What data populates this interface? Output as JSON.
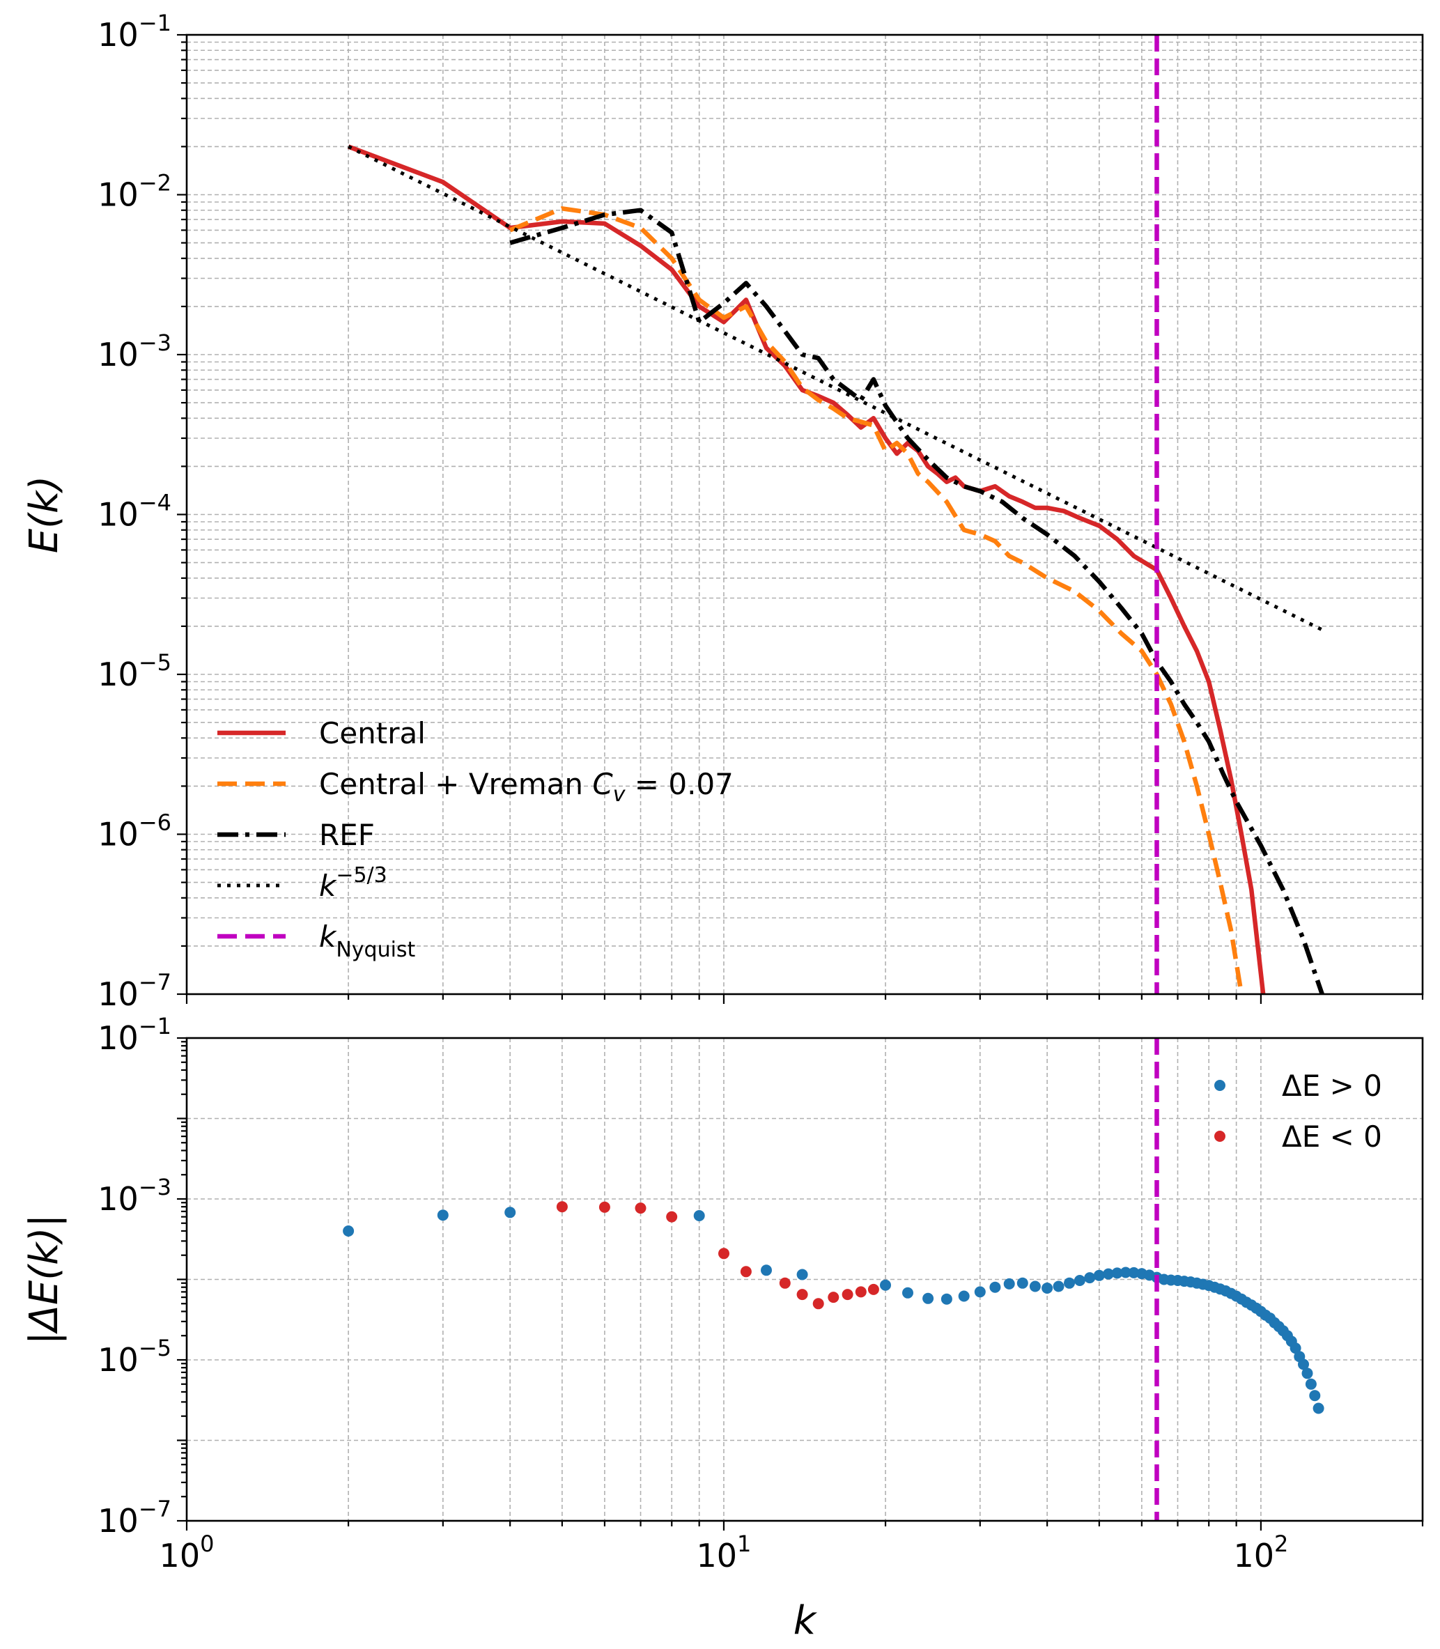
{
  "chart_data": [
    {
      "id": "top",
      "type": "line",
      "xscale": "log",
      "yscale": "log",
      "xlim": [
        1,
        200
      ],
      "ylim": [
        1e-07,
        0.1
      ],
      "xlabel": "",
      "ylabel": "E(k)",
      "ytick_labels": [
        "10",
        "10",
        "10",
        "10",
        "10",
        "10",
        "10"
      ],
      "ytick_exponents": [
        "−7",
        "−6",
        "−5",
        "−4",
        "−3",
        "−2",
        "−1"
      ],
      "grid": true,
      "legend_position": "lower-left",
      "series": [
        {
          "name": "Central",
          "color": "#d62728",
          "style": "solid",
          "points": [
            [
              2,
              0.02
            ],
            [
              3,
              0.012
            ],
            [
              4,
              0.0062
            ],
            [
              5,
              0.0068
            ],
            [
              6,
              0.0066
            ],
            [
              7,
              0.0048
            ],
            [
              8,
              0.0034
            ],
            [
              9,
              0.002
            ],
            [
              10,
              0.0016
            ],
            [
              11,
              0.0022
            ],
            [
              12,
              0.0011
            ],
            [
              13,
              0.00085
            ],
            [
              14,
              0.0006
            ],
            [
              15,
              0.00055
            ],
            [
              16,
              0.0005
            ],
            [
              17,
              0.00042
            ],
            [
              18,
              0.00035
            ],
            [
              19,
              0.0004
            ],
            [
              20,
              0.0003
            ],
            [
              21,
              0.00024
            ],
            [
              22,
              0.00028
            ],
            [
              23,
              0.00025
            ],
            [
              24,
              0.0002
            ],
            [
              25,
              0.00018
            ],
            [
              26,
              0.00016
            ],
            [
              27,
              0.00017
            ],
            [
              28,
              0.00015
            ],
            [
              30,
              0.00014
            ],
            [
              32,
              0.00015
            ],
            [
              34,
              0.00013
            ],
            [
              36,
              0.00012
            ],
            [
              38,
              0.00011
            ],
            [
              40,
              0.00011
            ],
            [
              43,
              0.000105
            ],
            [
              46,
              9.5e-05
            ],
            [
              50,
              8.5e-05
            ],
            [
              54,
              7e-05
            ],
            [
              58,
              5.5e-05
            ],
            [
              62,
              4.8e-05
            ],
            [
              64,
              4.5e-05
            ],
            [
              68,
              3e-05
            ],
            [
              72,
              2e-05
            ],
            [
              76,
              1.4e-05
            ],
            [
              80,
              9e-06
            ],
            [
              84,
              4.5e-06
            ],
            [
              88,
              2.2e-06
            ],
            [
              92,
              1e-06
            ],
            [
              96,
              4.5e-07
            ],
            [
              99,
              1.8e-07
            ],
            [
              101,
              1e-07
            ]
          ]
        },
        {
          "name": "Central + Vreman C_v = 0.07",
          "color": "#ff7f0e",
          "style": "dashed",
          "points": [
            [
              4,
              0.006
            ],
            [
              5,
              0.0082
            ],
            [
              6,
              0.0075
            ],
            [
              7,
              0.0062
            ],
            [
              8,
              0.004
            ],
            [
              9,
              0.0022
            ],
            [
              10,
              0.0017
            ],
            [
              11,
              0.002
            ],
            [
              12,
              0.0012
            ],
            [
              13,
              0.0009
            ],
            [
              14,
              0.00062
            ],
            [
              15,
              0.00052
            ],
            [
              16,
              0.00046
            ],
            [
              17,
              0.0004
            ],
            [
              18,
              0.00038
            ],
            [
              19,
              0.00036
            ],
            [
              20,
              0.00025
            ],
            [
              21,
              0.00028
            ],
            [
              22,
              0.00024
            ],
            [
              23,
              0.00018
            ],
            [
              24,
              0.00016
            ],
            [
              26,
              0.00012
            ],
            [
              28,
              8e-05
            ],
            [
              30,
              7.5e-05
            ],
            [
              32,
              6.8e-05
            ],
            [
              34,
              5.5e-05
            ],
            [
              36,
              5e-05
            ],
            [
              40,
              4e-05
            ],
            [
              45,
              3.3e-05
            ],
            [
              50,
              2.5e-05
            ],
            [
              55,
              1.8e-05
            ],
            [
              60,
              1.4e-05
            ],
            [
              64,
              1e-05
            ],
            [
              68,
              6.5e-06
            ],
            [
              72,
              3.8e-06
            ],
            [
              76,
              2e-06
            ],
            [
              80,
              1e-06
            ],
            [
              84,
              5e-07
            ],
            [
              88,
              2.5e-07
            ],
            [
              92,
              1e-07
            ]
          ]
        },
        {
          "name": "REF",
          "color": "#000000",
          "style": "dashdot",
          "points": [
            [
              4,
              0.005
            ],
            [
              5,
              0.0062
            ],
            [
              6,
              0.0075
            ],
            [
              7,
              0.008
            ],
            [
              8,
              0.0058
            ],
            [
              9,
              0.0016
            ],
            [
              10,
              0.0021
            ],
            [
              11,
              0.0028
            ],
            [
              12,
              0.002
            ],
            [
              13,
              0.0014
            ],
            [
              14,
              0.001
            ],
            [
              15,
              0.00095
            ],
            [
              16,
              0.0007
            ],
            [
              17,
              0.0006
            ],
            [
              18,
              0.00052
            ],
            [
              19,
              0.0007
            ],
            [
              20,
              0.00048
            ],
            [
              22,
              0.0003
            ],
            [
              24,
              0.00022
            ],
            [
              26,
              0.00017
            ],
            [
              28,
              0.00015
            ],
            [
              30,
              0.00014
            ],
            [
              33,
              0.00012
            ],
            [
              36,
              9.5e-05
            ],
            [
              40,
              7.5e-05
            ],
            [
              45,
              5.5e-05
            ],
            [
              50,
              3.8e-05
            ],
            [
              55,
              2.6e-05
            ],
            [
              60,
              1.8e-05
            ],
            [
              64,
              1.2e-05
            ],
            [
              68,
              9e-06
            ],
            [
              72,
              6.5e-06
            ],
            [
              76,
              5e-06
            ],
            [
              80,
              3.8e-06
            ],
            [
              85,
              2.4e-06
            ],
            [
              90,
              1.6e-06
            ],
            [
              100,
              8.5e-07
            ],
            [
              110,
              4.5e-07
            ],
            [
              120,
              2.2e-07
            ],
            [
              130,
              1e-07
            ]
          ]
        },
        {
          "name": "k^-5/3",
          "color": "#000000",
          "style": "dotted",
          "points": [
            [
              2,
              0.02
            ],
            [
              130,
              1.9e-05
            ]
          ]
        }
      ],
      "vline": {
        "name": "k_Nyquist",
        "x": 64,
        "color": "#c000c0",
        "style": "dashed"
      }
    },
    {
      "id": "bottom",
      "type": "scatter",
      "xscale": "log",
      "yscale": "log",
      "xlim": [
        1,
        200
      ],
      "ylim": [
        1e-07,
        0.1
      ],
      "xlabel": "k",
      "ylabel": "|ΔE(k)|",
      "xtick_labels": [
        "10",
        "10",
        "10"
      ],
      "xtick_exponents": [
        "0",
        "1",
        "2"
      ],
      "ytick_labels": [
        "10",
        "10",
        "10",
        "10"
      ],
      "ytick_exponents": [
        "−7",
        "−5",
        "−3",
        "−1"
      ],
      "grid": true,
      "legend_position": "top-right",
      "series": [
        {
          "name": "ΔE > 0",
          "color": "#1f77b4",
          "points": [
            [
              2,
              0.0004
            ],
            [
              3,
              0.00063
            ],
            [
              4,
              0.00068
            ],
            [
              9,
              0.00062
            ],
            [
              12,
              0.00013
            ],
            [
              14,
              0.000115
            ],
            [
              20,
              8.5e-05
            ],
            [
              22,
              6.8e-05
            ],
            [
              24,
              5.8e-05
            ],
            [
              26,
              5.7e-05
            ],
            [
              28,
              6.2e-05
            ],
            [
              30,
              7e-05
            ],
            [
              32,
              8e-05
            ],
            [
              34,
              8.8e-05
            ],
            [
              36,
              9e-05
            ],
            [
              38,
              8.2e-05
            ],
            [
              40,
              7.8e-05
            ],
            [
              42,
              8.2e-05
            ],
            [
              44,
              9e-05
            ],
            [
              46,
              9.7e-05
            ],
            [
              48,
              0.000105
            ],
            [
              50,
              0.000112
            ],
            [
              52,
              0.000117
            ],
            [
              54,
              0.00012
            ],
            [
              56,
              0.000122
            ],
            [
              58,
              0.000121
            ],
            [
              60,
              0.000118
            ],
            [
              62,
              0.000113
            ],
            [
              64,
              0.000106
            ],
            [
              66,
              0.0001
            ],
            [
              68,
              9.8e-05
            ],
            [
              70,
              9.7e-05
            ],
            [
              72,
              9.5e-05
            ],
            [
              74,
              9.3e-05
            ],
            [
              76,
              9e-05
            ],
            [
              78,
              8.7e-05
            ],
            [
              80,
              8.4e-05
            ],
            [
              82,
              8e-05
            ],
            [
              84,
              7.6e-05
            ],
            [
              86,
              7.2e-05
            ],
            [
              88,
              6.7e-05
            ],
            [
              90,
              6.2e-05
            ],
            [
              92,
              5.7e-05
            ],
            [
              94,
              5.2e-05
            ],
            [
              96,
              4.8e-05
            ],
            [
              98,
              4.4e-05
            ],
            [
              100,
              4e-05
            ],
            [
              102,
              3.6e-05
            ],
            [
              104,
              3.3e-05
            ],
            [
              106,
              2.9e-05
            ],
            [
              108,
              2.6e-05
            ],
            [
              110,
              2.3e-05
            ],
            [
              112,
              2e-05
            ],
            [
              114,
              1.7e-05
            ],
            [
              116,
              1.4e-05
            ],
            [
              118,
              1.1e-05
            ],
            [
              120,
              8.8e-06
            ],
            [
              122,
              6.8e-06
            ],
            [
              124,
              5e-06
            ],
            [
              126,
              3.6e-06
            ],
            [
              128,
              2.5e-06
            ]
          ]
        },
        {
          "name": "ΔE < 0",
          "color": "#d62728",
          "points": [
            [
              5,
              0.0008
            ],
            [
              6,
              0.00079
            ],
            [
              7,
              0.00077
            ],
            [
              8,
              0.0006
            ],
            [
              10,
              0.00021
            ],
            [
              11,
              0.000125
            ],
            [
              13,
              9e-05
            ],
            [
              14,
              6.5e-05
            ],
            [
              15,
              5e-05
            ],
            [
              16,
              6e-05
            ],
            [
              17,
              6.5e-05
            ],
            [
              18,
              7e-05
            ],
            [
              19,
              7.5e-05
            ]
          ]
        }
      ],
      "vline": {
        "name": "k_Nyquist",
        "x": 64,
        "color": "#c000c0",
        "style": "dashed"
      }
    }
  ],
  "legend_top": [
    {
      "name": "Central",
      "text": "Central",
      "color": "#d62728",
      "style": "solid"
    },
    {
      "name": "Central + Vreman",
      "text": "Central + Vreman ",
      "math_sym": "C",
      "math_sub": "v",
      "math_rest": " = 0.07",
      "color": "#ff7f0e",
      "style": "dashed"
    },
    {
      "name": "REF",
      "text": "REF",
      "color": "#000000",
      "style": "dashdot"
    },
    {
      "name": "k^-5/3",
      "text": "k",
      "sup": "−5/3",
      "color": "#000000",
      "style": "dotted"
    },
    {
      "name": "k_Nyquist",
      "text": "k",
      "sub": "Nyquist",
      "color": "#c000c0",
      "style": "dashed"
    }
  ],
  "legend_bottom": [
    {
      "name": "ΔE > 0",
      "text": "ΔE > 0",
      "color": "#1f77b4"
    },
    {
      "name": "ΔE < 0",
      "text": "ΔE < 0",
      "color": "#d62728"
    }
  ]
}
